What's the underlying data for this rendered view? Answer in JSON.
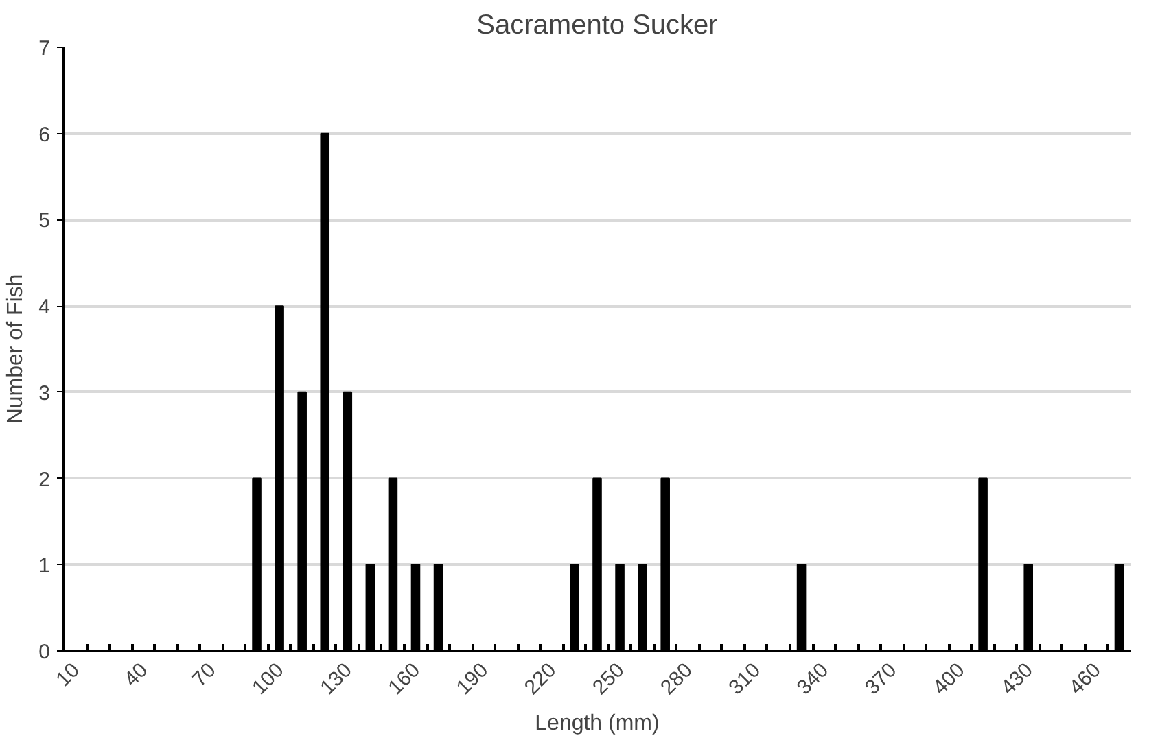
{
  "chart_data": {
    "type": "bar",
    "title": "Sacramento Sucker",
    "xlabel": "Length (mm)",
    "ylabel": "Number of Fish",
    "categories": [
      "10",
      null,
      null,
      "40",
      null,
      null,
      "70",
      null,
      null,
      "100",
      null,
      null,
      "130",
      null,
      null,
      "160",
      null,
      null,
      "190",
      null,
      null,
      "220",
      null,
      null,
      "250",
      null,
      null,
      "280",
      null,
      null,
      "310",
      null,
      null,
      "340",
      null,
      null,
      "370",
      null,
      null,
      "400",
      null,
      null,
      "430",
      null,
      null,
      "460",
      null
    ],
    "values": [
      0,
      0,
      0,
      0,
      0,
      0,
      0,
      0,
      2,
      4,
      3,
      6,
      3,
      1,
      2,
      1,
      1,
      0,
      0,
      0,
      0,
      0,
      1,
      2,
      1,
      1,
      2,
      0,
      0,
      0,
      0,
      0,
      1,
      0,
      0,
      0,
      0,
      0,
      0,
      0,
      2,
      0,
      1,
      0,
      0,
      0,
      1
    ],
    "color": "#000000",
    "ylim": [
      0,
      7
    ],
    "yticks": [
      0,
      1,
      2,
      3,
      4,
      5,
      6,
      7
    ],
    "grid": "y"
  }
}
